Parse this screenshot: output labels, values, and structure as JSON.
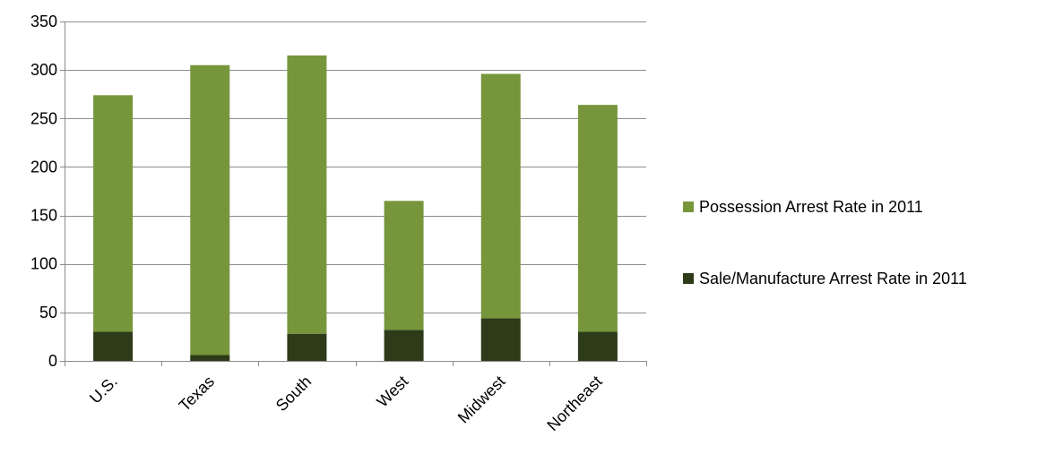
{
  "chart_data": {
    "type": "bar",
    "stacked": true,
    "categories": [
      "U.S.",
      "Texas",
      "South",
      "West",
      "Midwest",
      "Northeast"
    ],
    "series": [
      {
        "name": "Sale/Manufacture Arrest Rate in 2011",
        "values": [
          30,
          6,
          28,
          32,
          44,
          30
        ],
        "color": "#2d3b19"
      },
      {
        "name": "Possession Arrest Rate in 2011",
        "values": [
          244,
          299,
          287,
          133,
          252,
          234
        ],
        "color": "#77963c"
      }
    ],
    "legend_order": [
      1,
      0
    ],
    "ylim": [
      0,
      350
    ],
    "yticks": [
      0,
      50,
      100,
      150,
      200,
      250,
      300,
      350
    ],
    "grid": true,
    "legend_position": "right",
    "gridline_color": "#8c8c8c"
  }
}
